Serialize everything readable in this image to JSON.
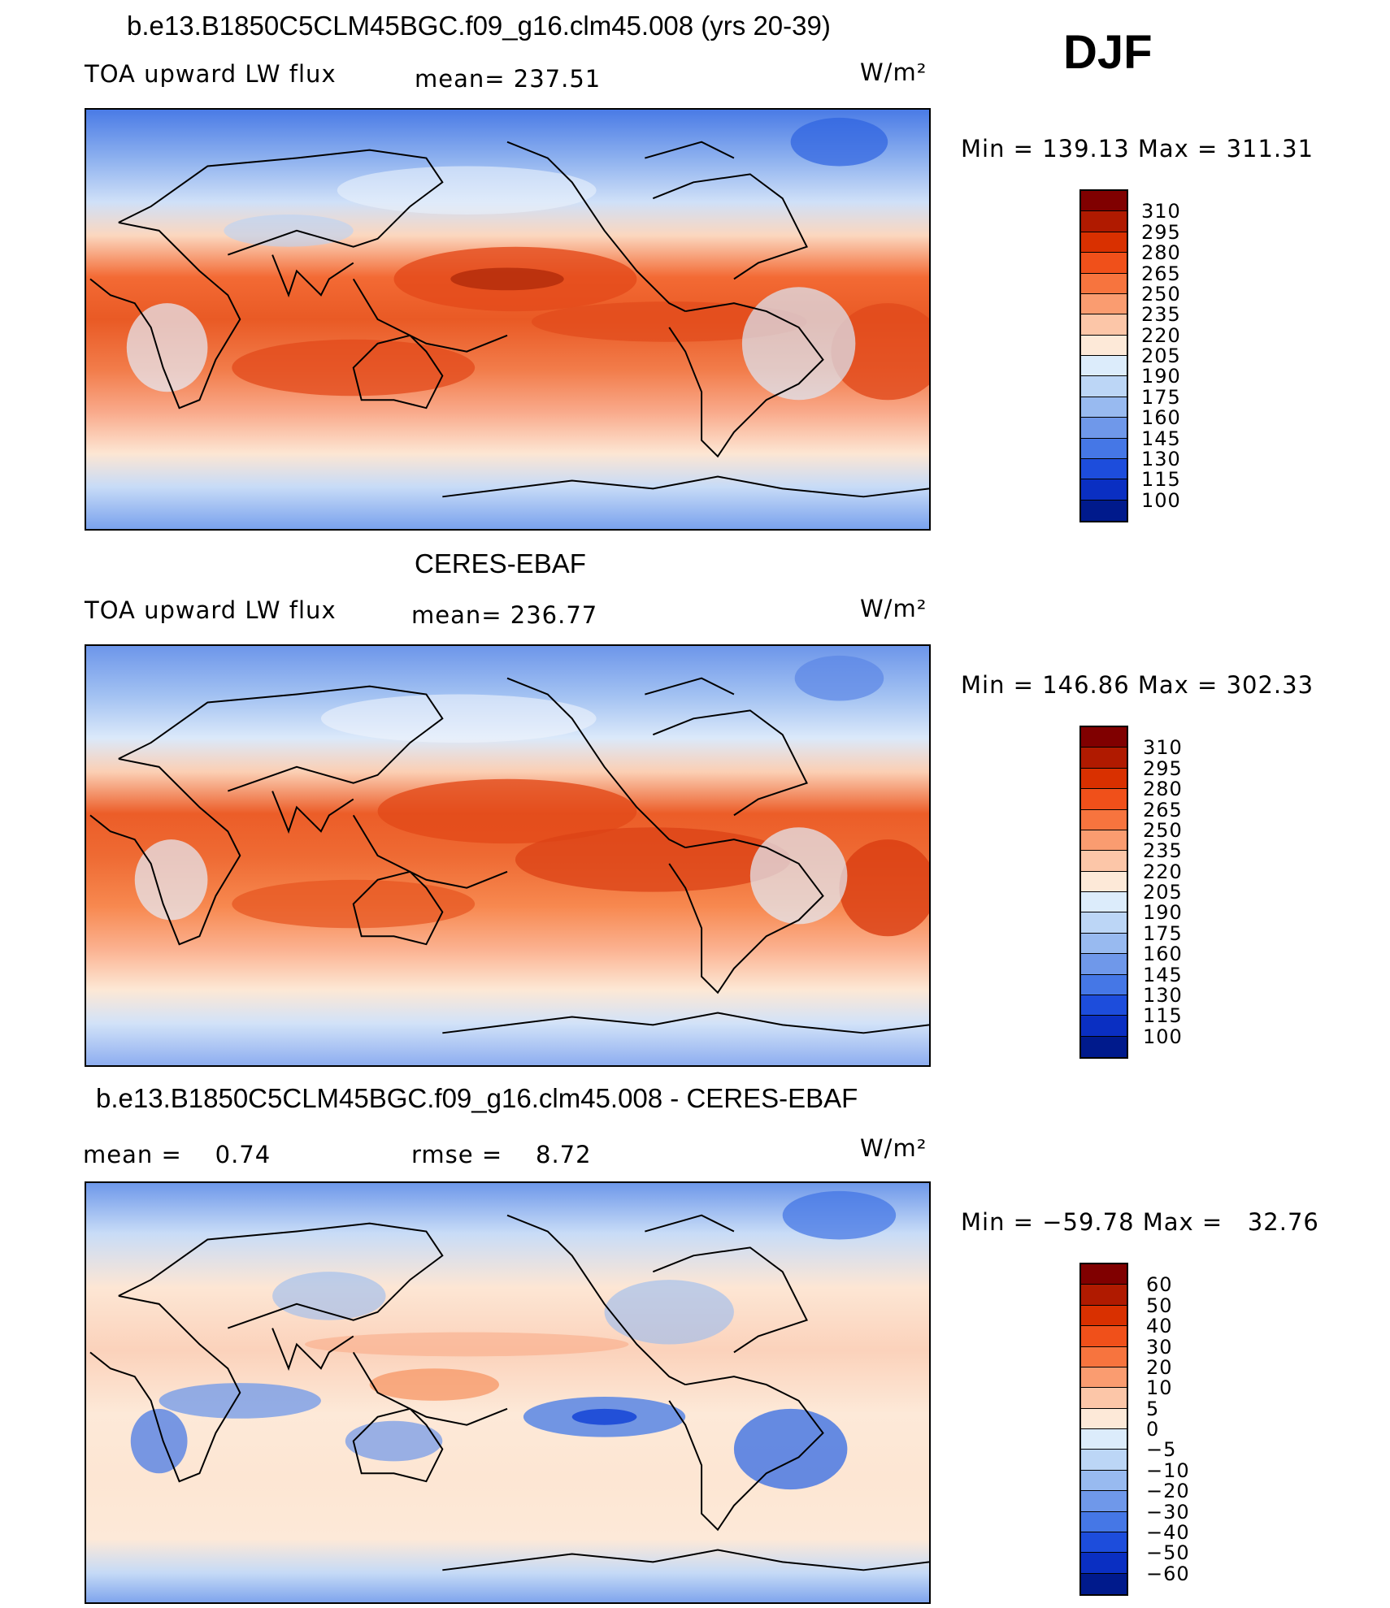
{
  "header": {
    "djf": "DJF"
  },
  "units": "W/m²",
  "panels": [
    {
      "title": "b.e13.B1850C5CLM45BGC.f09_g16.clm45.008 (yrs 20-39)",
      "left_label": "TOA upward LW flux",
      "mid_label": "mean= 237.51",
      "minmax": "Min = 139.13 Max = 311.31",
      "colorbar": {
        "labels": [
          "310",
          "295",
          "280",
          "265",
          "250",
          "235",
          "220",
          "205",
          "190",
          "175",
          "160",
          "145",
          "130",
          "115",
          "100"
        ],
        "colors": [
          "#800000",
          "#b01a00",
          "#d93000",
          "#f0501a",
          "#f7743e",
          "#fa9c70",
          "#fcc6a8",
          "#fde9d8",
          "#dcecfb",
          "#bcd6f6",
          "#98baf0",
          "#6f98ea",
          "#4577e6",
          "#1d4ddc",
          "#0a2fc2",
          "#001a8c"
        ]
      }
    },
    {
      "title": "CERES-EBAF",
      "left_label": "TOA upward LW flux",
      "mid_label": "mean= 236.77",
      "minmax": "Min = 146.86 Max = 302.33",
      "colorbar": {
        "labels": [
          "310",
          "295",
          "280",
          "265",
          "250",
          "235",
          "220",
          "205",
          "190",
          "175",
          "160",
          "145",
          "130",
          "115",
          "100"
        ],
        "colors": [
          "#800000",
          "#b01a00",
          "#d93000",
          "#f0501a",
          "#f7743e",
          "#fa9c70",
          "#fcc6a8",
          "#fde9d8",
          "#dcecfb",
          "#bcd6f6",
          "#98baf0",
          "#6f98ea",
          "#4577e6",
          "#1d4ddc",
          "#0a2fc2",
          "#001a8c"
        ]
      }
    },
    {
      "title": "b.e13.B1850C5CLM45BGC.f09_g16.clm45.008 - CERES-EBAF",
      "left_label": "mean =    0.74",
      "mid_label": "rmse =    8.72",
      "minmax": "Min = −59.78 Max =   32.76",
      "colorbar": {
        "labels": [
          "60",
          "50",
          "40",
          "30",
          "20",
          "10",
          "5",
          "0",
          "−5",
          "−10",
          "−20",
          "−30",
          "−40",
          "−50",
          "−60"
        ],
        "colors": [
          "#800000",
          "#b01a00",
          "#d93000",
          "#f0501a",
          "#f7743e",
          "#fa9c70",
          "#fcc6a8",
          "#fde9d8",
          "#dcecfb",
          "#bcd6f6",
          "#98baf0",
          "#6f98ea",
          "#4577e6",
          "#1d4ddc",
          "#0a2fc2",
          "#001a8c"
        ]
      }
    }
  ]
}
